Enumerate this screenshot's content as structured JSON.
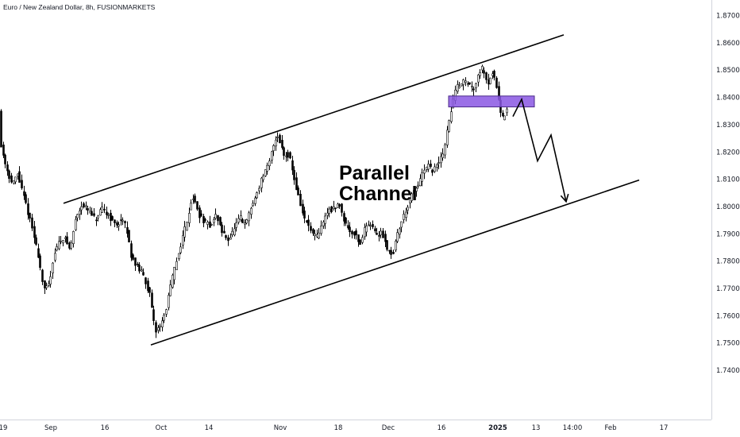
{
  "header": {
    "title": "Euro / New Zealand Dollar, 8h, FUSIONMARKETS"
  },
  "chart_data": {
    "type": "candlestick",
    "title": "Euro / New Zealand Dollar, 8h, FUSIONMARKETS",
    "ylim": [
      1.735,
      1.875
    ],
    "yticks": [
      "1.87000",
      "1.86000",
      "1.85000",
      "1.84000",
      "1.83000",
      "1.82000",
      "1.81000",
      "1.80000",
      "1.79000",
      "1.78000",
      "1.77000",
      "1.76000",
      "1.75000",
      "1.74000"
    ],
    "xtick_labels": [
      {
        "label": "19",
        "bold": false
      },
      {
        "label": "Sep",
        "bold": false
      },
      {
        "label": "16",
        "bold": false
      },
      {
        "label": "Oct",
        "bold": false
      },
      {
        "label": "14",
        "bold": false
      },
      {
        "label": "Nov",
        "bold": false
      },
      {
        "label": "18",
        "bold": false
      },
      {
        "label": "Dec",
        "bold": false
      },
      {
        "label": "16",
        "bold": false
      },
      {
        "label": "2025",
        "bold": true
      },
      {
        "label": "13",
        "bold": false
      },
      {
        "label": "14:00",
        "bold": false
      },
      {
        "label": "Feb",
        "bold": false
      },
      {
        "label": "17",
        "bold": false
      }
    ],
    "price_path": [
      [
        0,
        1.823
      ],
      [
        8,
        1.814
      ],
      [
        15,
        1.808
      ],
      [
        22,
        1.812
      ],
      [
        28,
        1.805
      ],
      [
        33,
        1.8
      ],
      [
        40,
        1.792
      ],
      [
        48,
        1.782
      ],
      [
        55,
        1.769
      ],
      [
        62,
        1.772
      ],
      [
        67,
        1.782
      ],
      [
        72,
        1.786
      ],
      [
        80,
        1.789
      ],
      [
        88,
        1.784
      ],
      [
        95,
        1.796
      ],
      [
        103,
        1.801
      ],
      [
        112,
        1.798
      ],
      [
        120,
        1.795
      ],
      [
        128,
        1.799
      ],
      [
        136,
        1.797
      ],
      [
        145,
        1.793
      ],
      [
        152,
        1.795
      ],
      [
        158,
        1.793
      ],
      [
        165,
        1.782
      ],
      [
        172,
        1.778
      ],
      [
        180,
        1.775
      ],
      [
        188,
        1.768
      ],
      [
        195,
        1.754
      ],
      [
        200,
        1.756
      ],
      [
        207,
        1.76
      ],
      [
        215,
        1.772
      ],
      [
        222,
        1.78
      ],
      [
        228,
        1.787
      ],
      [
        235,
        1.795
      ],
      [
        242,
        1.804
      ],
      [
        250,
        1.797
      ],
      [
        258,
        1.794
      ],
      [
        265,
        1.793
      ],
      [
        272,
        1.797
      ],
      [
        280,
        1.79
      ],
      [
        288,
        1.788
      ],
      [
        295,
        1.792
      ],
      [
        302,
        1.796
      ],
      [
        308,
        1.793
      ],
      [
        315,
        1.799
      ],
      [
        322,
        1.804
      ],
      [
        330,
        1.811
      ],
      [
        338,
        1.815
      ],
      [
        345,
        1.824
      ],
      [
        350,
        1.826
      ],
      [
        357,
        1.819
      ],
      [
        364,
        1.819
      ],
      [
        370,
        1.81
      ],
      [
        376,
        1.803
      ],
      [
        382,
        1.796
      ],
      [
        388,
        1.793
      ],
      [
        395,
        1.789
      ],
      [
        400,
        1.789
      ],
      [
        407,
        1.795
      ],
      [
        414,
        1.799
      ],
      [
        420,
        1.799
      ],
      [
        427,
        1.801
      ],
      [
        433,
        1.795
      ],
      [
        440,
        1.791
      ],
      [
        447,
        1.79
      ],
      [
        453,
        1.786
      ],
      [
        460,
        1.793
      ],
      [
        467,
        1.794
      ],
      [
        474,
        1.789
      ],
      [
        480,
        1.791
      ],
      [
        487,
        1.785
      ],
      [
        494,
        1.782
      ],
      [
        500,
        1.79
      ],
      [
        507,
        1.796
      ],
      [
        514,
        1.801
      ],
      [
        520,
        1.805
      ],
      [
        526,
        1.808
      ],
      [
        532,
        1.812
      ],
      [
        538,
        1.815
      ],
      [
        545,
        1.813
      ],
      [
        552,
        1.816
      ],
      [
        558,
        1.82
      ],
      [
        565,
        1.831
      ],
      [
        572,
        1.842
      ],
      [
        578,
        1.845
      ],
      [
        584,
        1.846
      ],
      [
        590,
        1.845
      ],
      [
        596,
        1.843
      ],
      [
        602,
        1.849
      ],
      [
        608,
        1.851
      ],
      [
        614,
        1.845
      ],
      [
        620,
        1.849
      ],
      [
        624,
        1.846
      ],
      [
        628,
        1.839
      ],
      [
        632,
        1.832
      ],
      [
        636,
        1.834
      ],
      [
        640,
        1.836
      ]
    ],
    "channel_upper": [
      [
        80,
        1.8012
      ],
      [
        710,
        1.8629
      ]
    ],
    "channel_lower": [
      [
        190,
        1.7493
      ],
      [
        805,
        1.8097
      ]
    ],
    "resistance_zone": {
      "x1": 565,
      "x2": 673,
      "y_low": 1.8365,
      "y_high": 1.8405,
      "color": "#8a57e3"
    },
    "projection_path": [
      [
        646,
        1.833
      ],
      [
        657,
        1.8393
      ],
      [
        677,
        1.8167
      ],
      [
        694,
        1.8262
      ],
      [
        713,
        1.8018
      ]
    ],
    "annotation": {
      "line1": "Parallel",
      "line2": "Channel"
    },
    "colors": {
      "candle": "#000000",
      "background": "#ffffff",
      "axis_text": "#131722"
    }
  }
}
